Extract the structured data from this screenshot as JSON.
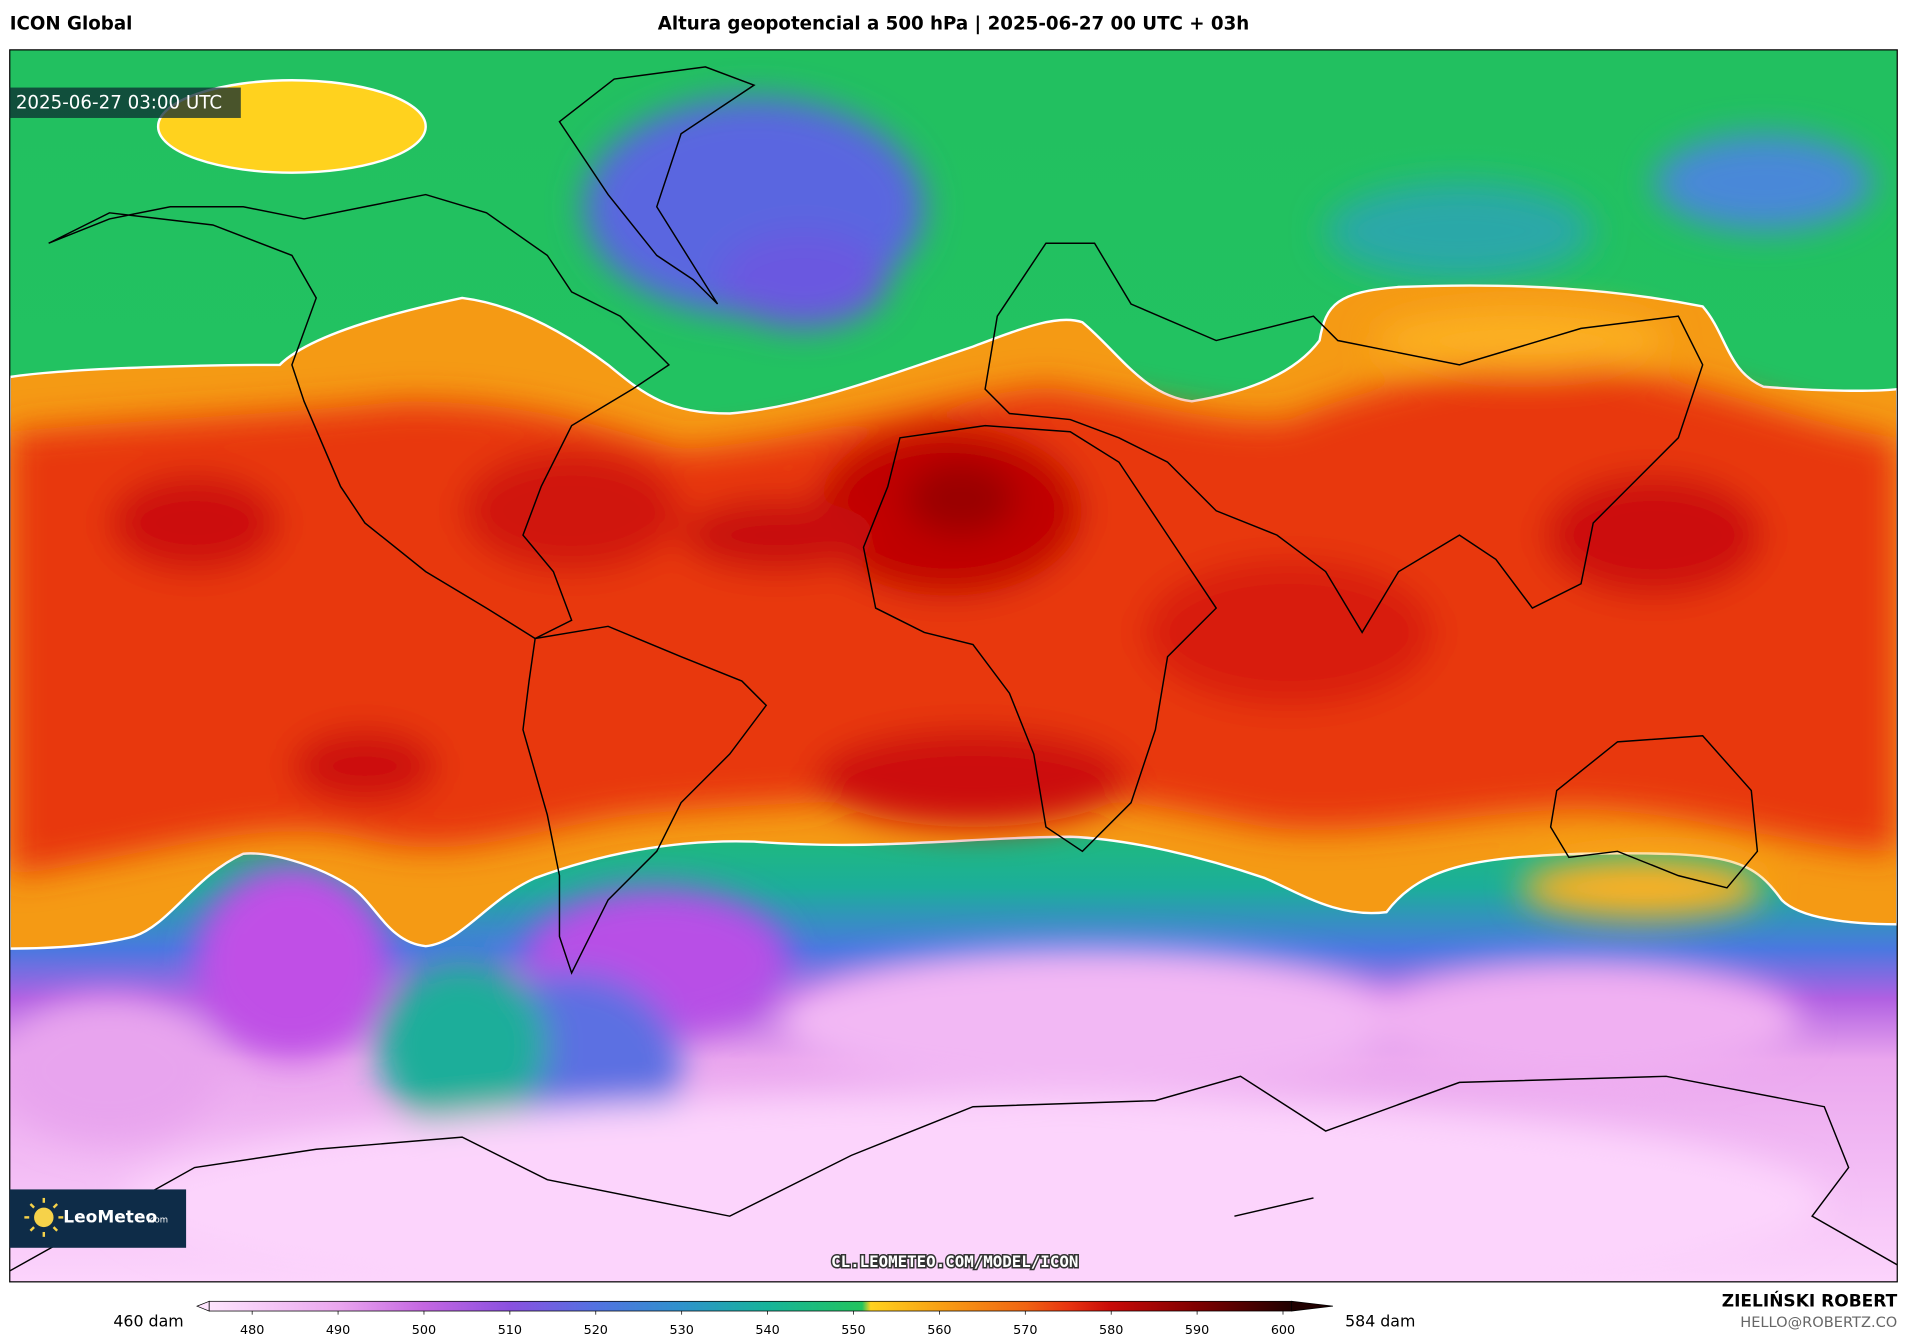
{
  "header": {
    "model": "ICON Global",
    "title": "Altura geopotencial a 500 hPa | 2025-06-27 00 UTC + 03h"
  },
  "map": {
    "timestamp": "2025-06-27 03:00 UTC",
    "url": "CL.LEOMETEO.COM/MODEL/ICON"
  },
  "logo": {
    "text": "LeoMeteo",
    "suffix": ".com"
  },
  "colorbar": {
    "min_label": "460 dam",
    "max_label": "584 dam",
    "range": [
      475,
      601
    ],
    "ticks": [
      480,
      490,
      500,
      510,
      520,
      530,
      540,
      550,
      560,
      570,
      580,
      590,
      600
    ],
    "stops": [
      [
        475,
        "#fde4fd"
      ],
      [
        490,
        "#eaa6ee"
      ],
      [
        500,
        "#c466e2"
      ],
      [
        510,
        "#8a50e0"
      ],
      [
        520,
        "#5272e2"
      ],
      [
        530,
        "#2e92cc"
      ],
      [
        540,
        "#16b49a"
      ],
      [
        551,
        "#22c45e"
      ],
      [
        552,
        "#ffd21e"
      ],
      [
        560,
        "#f8a014"
      ],
      [
        570,
        "#f06412"
      ],
      [
        575,
        "#e83410"
      ],
      [
        580,
        "#c80a08"
      ],
      [
        590,
        "#7e0000"
      ],
      [
        601,
        "#200000"
      ]
    ]
  },
  "credit": {
    "name": "ZIELIŃSKI ROBERT",
    "email": "HELLO@ROBERTZ.CO"
  }
}
